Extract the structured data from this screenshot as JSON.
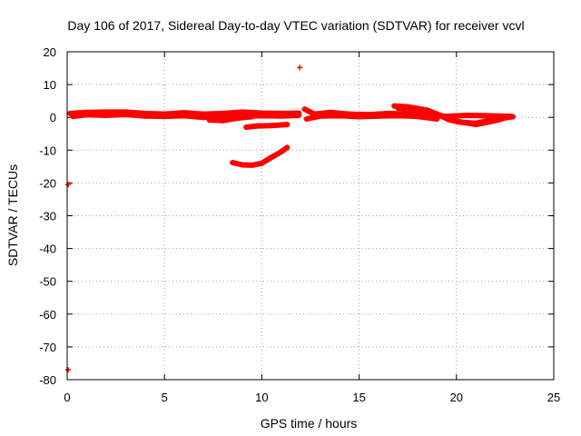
{
  "chart_data": {
    "type": "scatter",
    "title": "Day 106 of 2017, Sidereal Day-to-day VTEC variation (SDTVAR) for receiver vcvl",
    "xlabel": "GPS time / hours",
    "ylabel": "SDTVAR / TECUs",
    "xlim": [
      0,
      25
    ],
    "ylim": [
      -80,
      20
    ],
    "xticks": [
      0,
      5,
      10,
      15,
      20,
      25
    ],
    "yticks": [
      20,
      10,
      0,
      -10,
      -20,
      -30,
      -40,
      -50,
      -60,
      -70,
      -80
    ],
    "grid": true,
    "marker": "plus",
    "color": "#ff0000",
    "series": [
      {
        "name": "",
        "tracks": [
          [
            [
              0.15,
              1.2
            ],
            [
              1,
              1.5
            ],
            [
              2,
              1.6
            ],
            [
              3,
              1.6
            ],
            [
              4,
              1.2
            ],
            [
              5,
              1.0
            ],
            [
              6,
              1.4
            ],
            [
              7,
              1.0
            ],
            [
              8,
              1.2
            ],
            [
              9,
              1.6
            ],
            [
              10,
              1.3
            ],
            [
              11,
              1.2
            ],
            [
              11.9,
              1.3
            ]
          ],
          [
            [
              0.3,
              0.3
            ],
            [
              1,
              0.8
            ],
            [
              2,
              0.6
            ],
            [
              3,
              0.9
            ],
            [
              4,
              0.4
            ],
            [
              5,
              0.3
            ],
            [
              6,
              0.5
            ],
            [
              7,
              0.0
            ],
            [
              8,
              0.4
            ],
            [
              9,
              0.4
            ],
            [
              10,
              0.5
            ],
            [
              11,
              0.4
            ],
            [
              11.9,
              0.6
            ]
          ],
          [
            [
              7.3,
              -0.8
            ],
            [
              8,
              -1.0
            ],
            [
              8.8,
              -0.2
            ],
            [
              9.5,
              0.2
            ]
          ],
          [
            [
              9.2,
              -3.0
            ],
            [
              9.8,
              -2.6
            ],
            [
              10.5,
              -2.5
            ],
            [
              11.3,
              -2.2
            ]
          ],
          [
            [
              8.5,
              -13.8
            ],
            [
              9,
              -14.5
            ],
            [
              9.5,
              -14.6
            ],
            [
              10,
              -14.0
            ],
            [
              10.5,
              -12.2
            ],
            [
              11,
              -10.5
            ],
            [
              11.3,
              -9.2
            ]
          ],
          [
            [
              12.2,
              2.5
            ],
            [
              12.7,
              1.0
            ],
            [
              13.5,
              1.5
            ],
            [
              14.5,
              1.0
            ],
            [
              15.5,
              0.8
            ],
            [
              16.5,
              1.2
            ],
            [
              17.5,
              1.0
            ],
            [
              18.5,
              0.8
            ],
            [
              19.5,
              0.3
            ],
            [
              20.5,
              0.6
            ],
            [
              21.5,
              0.5
            ],
            [
              22.8,
              0.3
            ]
          ],
          [
            [
              12.3,
              -0.5
            ],
            [
              13,
              0.4
            ],
            [
              14,
              0.5
            ],
            [
              15,
              0.2
            ],
            [
              16,
              0.4
            ],
            [
              17,
              0.5
            ],
            [
              18,
              0.3
            ],
            [
              19,
              -0.5
            ]
          ],
          [
            [
              16.8,
              3.5
            ],
            [
              17.5,
              3.2
            ],
            [
              18.5,
              2.2
            ],
            [
              19.2,
              0.5
            ],
            [
              19.6,
              -0.7
            ],
            [
              20.2,
              -1.5
            ],
            [
              21,
              -1.8
            ],
            [
              22,
              -0.5
            ],
            [
              22.9,
              0.2
            ]
          ],
          [
            [
              17,
              2.8
            ],
            [
              18,
              2.5
            ],
            [
              19,
              1.0
            ],
            [
              20,
              -1.2
            ],
            [
              21,
              -2.2
            ],
            [
              22,
              -1.0
            ],
            [
              22.6,
              0.0
            ]
          ]
        ],
        "points": [
          [
            11.95,
            15.2
          ],
          [
            0.05,
            -20.5
          ],
          [
            0.05,
            -77.0
          ]
        ]
      }
    ]
  }
}
